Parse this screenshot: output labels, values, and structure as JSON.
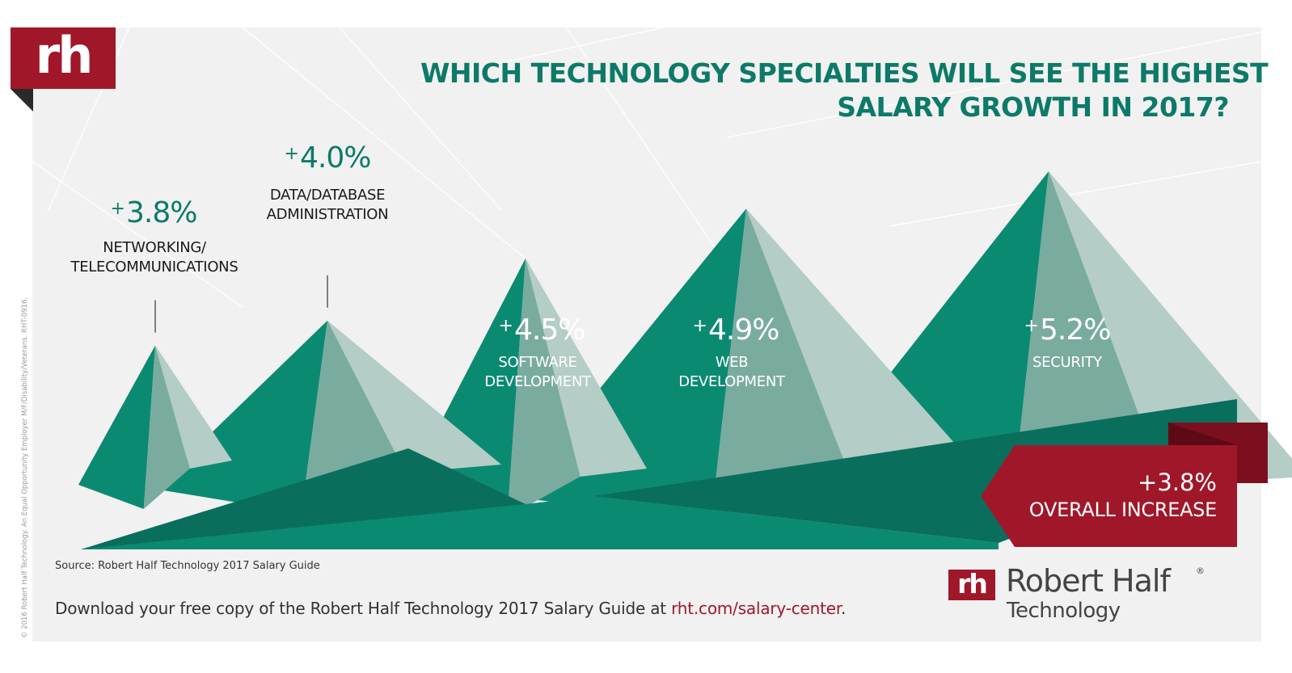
{
  "logo": {
    "mark": "rh"
  },
  "title": {
    "line1": "WHICH TECHNOLOGY SPECIALTIES WILL SEE THE HIGHEST",
    "line2": "SALARY GROWTH IN 2017?"
  },
  "chart_data": {
    "type": "bar",
    "title": "WHICH TECHNOLOGY SPECIALTIES WILL SEE THE HIGHEST SALARY GROWTH IN 2017?",
    "categories": [
      "NETWORKING/ TELECOMMUNICATIONS",
      "DATA/DATABASE ADMINISTRATION",
      "SOFTWARE DEVELOPMENT",
      "WEB DEVELOPMENT",
      "SECURITY"
    ],
    "values": [
      3.8,
      4.0,
      4.5,
      4.9,
      5.2
    ],
    "labels": [
      "+3.8%",
      "+4.0%",
      "+4.5%",
      "+4.9%",
      "+5.2%"
    ],
    "cat_lines": [
      [
        "NETWORKING/",
        "TELECOMMUNICATIONS"
      ],
      [
        "DATA/DATABASE",
        "ADMINISTRATION"
      ],
      [
        "SOFTWARE",
        "DEVELOPMENT"
      ],
      [
        "WEB",
        "DEVELOPMENT"
      ],
      [
        "SECURITY"
      ]
    ],
    "overall": {
      "value": 3.8,
      "label": "+3.8%",
      "text": "OVERALL INCREASE"
    },
    "xlabel": "",
    "ylabel": ""
  },
  "source": "Source: Robert Half Technology 2017 Salary Guide",
  "download": {
    "text": "Download your free copy of the Robert Half Technology 2017 Salary Guide at ",
    "link": "rht.com/salary-center",
    "end": "."
  },
  "brand": {
    "mark": "rh",
    "name": "Robert Half",
    "reg": "®",
    "sub": "Technology"
  },
  "legal": "© 2016 Robert Half Technology. An Equal Opportunity Employer M/F/Disability/Veterans. RHT-0916.",
  "colors": {
    "dark_green": "#0a6e5d",
    "teal": "#0b8a72",
    "mid": "#7aab9f",
    "light": "#b4cdc6",
    "red": "#a0172a",
    "dark_red": "#7c0f1e"
  }
}
